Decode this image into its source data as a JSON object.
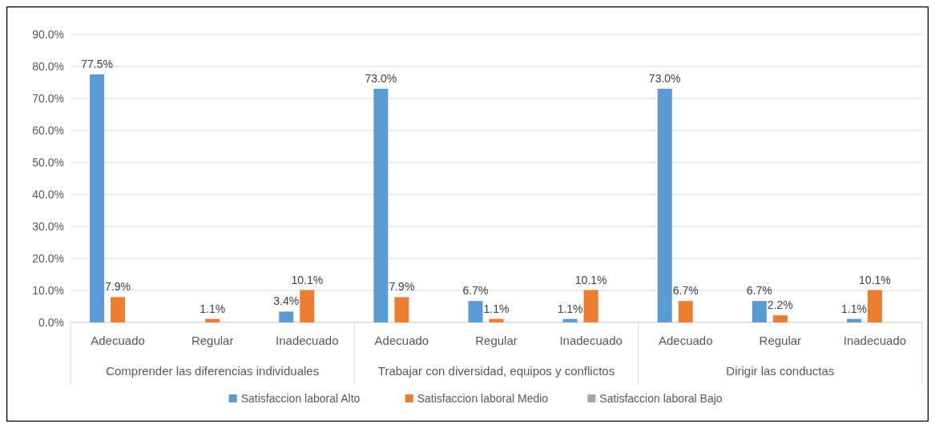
{
  "chart_data": {
    "type": "bar",
    "categories": [
      "Adecuado",
      "Regular",
      "Inadecuado",
      "Adecuado",
      "Regular",
      "Inadecuado",
      "Adecuado",
      "Regular",
      "Inadecuado"
    ],
    "annotations": [
      "Comprender las diferencias individuales",
      "Trabajar con diversidad, equipos y conflictos",
      "Dirigir las conductas"
    ],
    "series": [
      {
        "name": "Satisfaccion laboral Alto",
        "color": "#5b9bd5",
        "values": [
          77.5,
          0,
          3.4,
          73.0,
          6.7,
          1.1,
          73.0,
          6.7,
          1.1
        ],
        "value_labels": [
          "77.5%",
          null,
          "3.4%",
          "73.0%",
          "6.7%",
          "1.1%",
          "73.0%",
          "6.7%",
          "1.1%"
        ]
      },
      {
        "name": "Satisfaccion laboral Medio",
        "color": "#ed7d31",
        "values": [
          7.9,
          1.1,
          10.1,
          7.9,
          1.1,
          10.1,
          6.7,
          2.2,
          10.1
        ],
        "value_labels": [
          "7.9%",
          "1.1%",
          "10.1%",
          "7.9%",
          "1.1%",
          "10.1%",
          "6.7%",
          "2.2%",
          "10.1%"
        ]
      },
      {
        "name": "Satisfaccion laboral Bajo",
        "color": "#a5a5a5",
        "values": [
          0,
          0,
          0,
          0,
          0,
          0,
          0,
          0,
          0
        ],
        "value_labels": [
          null,
          null,
          null,
          null,
          null,
          null,
          null,
          null,
          null
        ]
      }
    ],
    "ylim": [
      0,
      90
    ],
    "yticks": [
      {
        "value": 0,
        "label": "0.0%"
      },
      {
        "value": 10,
        "label": "10.0%"
      },
      {
        "value": 20,
        "label": "20.0%"
      },
      {
        "value": 30,
        "label": "30.0%"
      },
      {
        "value": 40,
        "label": "40.0%"
      },
      {
        "value": 50,
        "label": "50.0%"
      },
      {
        "value": 60,
        "label": "60.0%"
      },
      {
        "value": 70,
        "label": "70.0%"
      },
      {
        "value": 80,
        "label": "80.0%"
      },
      {
        "value": 90,
        "label": "90.0%"
      }
    ],
    "grid": "y",
    "legend": "bottom"
  }
}
